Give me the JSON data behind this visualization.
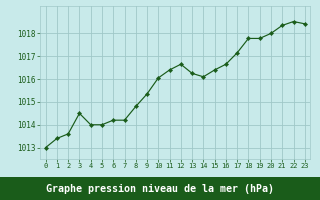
{
  "x": [
    0,
    1,
    2,
    3,
    4,
    5,
    6,
    7,
    8,
    9,
    10,
    11,
    12,
    13,
    14,
    15,
    16,
    17,
    18,
    19,
    20,
    21,
    22,
    23
  ],
  "y": [
    1013.0,
    1013.4,
    1013.6,
    1014.5,
    1014.0,
    1014.0,
    1014.2,
    1014.2,
    1014.8,
    1015.35,
    1016.05,
    1016.4,
    1016.65,
    1016.25,
    1016.1,
    1016.4,
    1016.65,
    1017.15,
    1017.78,
    1017.78,
    1018.0,
    1018.35,
    1018.52,
    1018.42
  ],
  "ylim": [
    1012.5,
    1019.2
  ],
  "yticks": [
    1013,
    1014,
    1015,
    1016,
    1017,
    1018
  ],
  "xlim": [
    -0.5,
    23.5
  ],
  "xticks": [
    0,
    1,
    2,
    3,
    4,
    5,
    6,
    7,
    8,
    9,
    10,
    11,
    12,
    13,
    14,
    15,
    16,
    17,
    18,
    19,
    20,
    21,
    22,
    23
  ],
  "line_color": "#1a5c1a",
  "marker_color": "#1a5c1a",
  "bg_color": "#c8eaea",
  "grid_color": "#a0c8c8",
  "bottom_bar_color": "#1a5c1a",
  "bottom_label_color": "#ffffff",
  "xlabel": "Graphe pression niveau de la mer (hPa)"
}
